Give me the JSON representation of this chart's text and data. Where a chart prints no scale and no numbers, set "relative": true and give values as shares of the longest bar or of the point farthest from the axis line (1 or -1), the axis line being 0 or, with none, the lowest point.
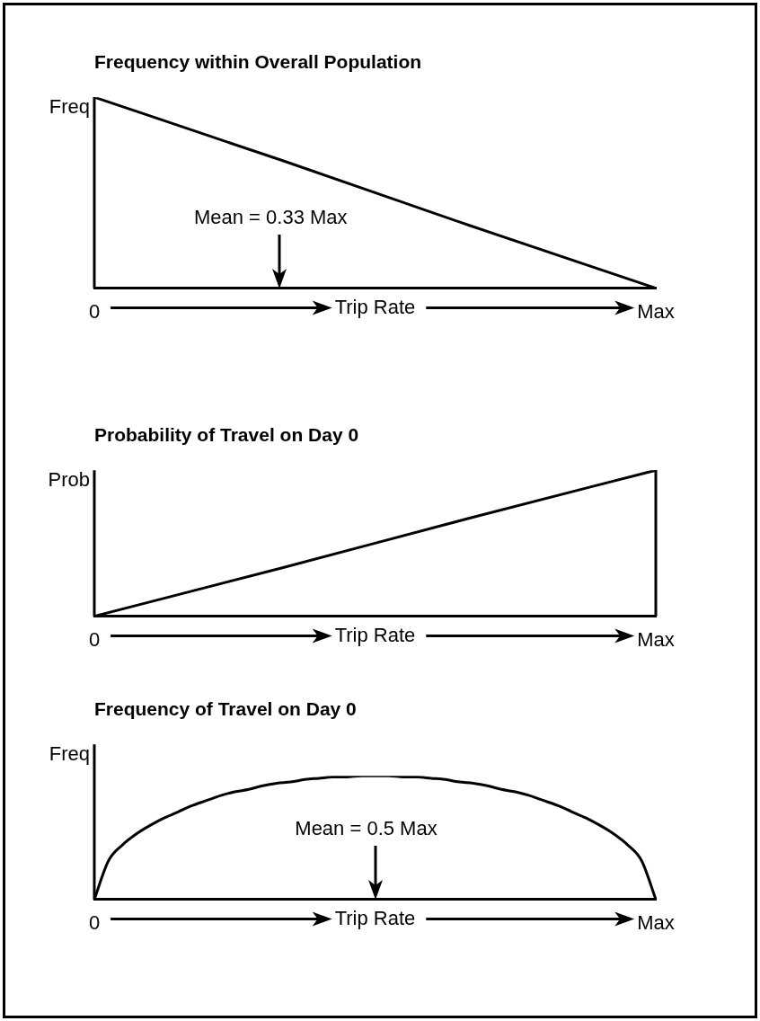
{
  "chart_data": [
    {
      "type": "line",
      "title": "Frequency within Overall Population",
      "xlabel": "Trip Rate",
      "ylabel": "Freq",
      "relative": true,
      "marker": "none",
      "categories": [
        "0",
        null,
        null,
        "Max"
      ],
      "series": [
        {
          "color": "#000000",
          "values": [
            1,
            0.67,
            0.33,
            0
          ]
        }
      ],
      "annotations": [
        "Mean = 0.33 Max"
      ]
    },
    {
      "type": "line",
      "title": "Probability of Travel on Day 0",
      "xlabel": "Trip Rate",
      "ylabel": "Prob",
      "relative": true,
      "marker": "none",
      "categories": [
        "0",
        null,
        null,
        "Max"
      ],
      "series": [
        {
          "color": "#000000",
          "values": [
            0,
            0.33,
            0.67,
            1
          ]
        }
      ]
    },
    {
      "type": "line",
      "title": "Frequency of Travel on Day 0",
      "xlabel": "Trip Rate",
      "ylabel": "Freq",
      "relative": true,
      "marker": "none",
      "categories": [
        "0",
        null,
        null,
        null,
        null,
        null,
        null,
        null,
        null,
        null,
        null,
        null,
        null,
        null,
        null,
        null,
        null,
        null,
        null,
        null,
        null,
        null,
        null,
        null,
        null,
        null,
        null,
        null,
        null,
        null,
        null,
        null,
        null,
        null,
        null,
        null,
        null,
        null,
        null,
        null,
        "Max"
      ],
      "series": [
        {
          "color": "#000000",
          "values": [
            0,
            0.31,
            0.44,
            0.53,
            0.6,
            0.66,
            0.71,
            0.76,
            0.8,
            0.84,
            0.87,
            0.89,
            0.92,
            0.94,
            0.95,
            0.97,
            0.98,
            0.99,
            0.99,
            1,
            1,
            1,
            0.99,
            0.99,
            0.98,
            0.97,
            0.95,
            0.94,
            0.92,
            0.89,
            0.87,
            0.84,
            0.8,
            0.76,
            0.71,
            0.66,
            0.6,
            0.53,
            0.44,
            0.31,
            0
          ]
        }
      ],
      "annotations": [
        "Mean = 0.5 Max"
      ]
    }
  ]
}
